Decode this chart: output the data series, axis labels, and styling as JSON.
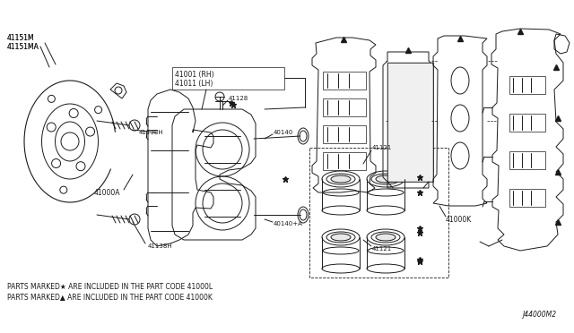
{
  "bg_color": "#ffffff",
  "line_color": "#1a1a1a",
  "fig_width": 6.4,
  "fig_height": 3.72,
  "footer_line1": "PARTS MARKED★ ARE INCLUDED IN THE PART CODE 41000L",
  "footer_line2": "PARTS MARKED▲ ARE INCLUDED IN THE PART CODE 41000K",
  "diagram_id": "J44000M2"
}
